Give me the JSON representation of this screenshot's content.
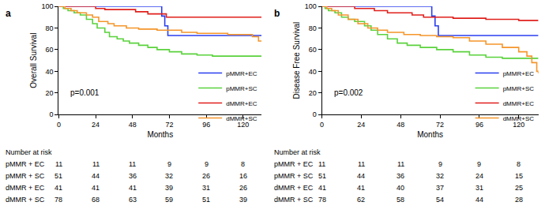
{
  "chart_data": [
    {
      "type": "line",
      "title": "a",
      "line_style": "step",
      "x_label": "Months",
      "y_label": "Overall Survival",
      "xlim": [
        0,
        132
      ],
      "xticks": [
        0,
        24,
        48,
        72,
        96,
        120
      ],
      "ylim": [
        0,
        100
      ],
      "yticks": [
        0,
        20,
        40,
        60,
        80,
        100
      ],
      "grid": false,
      "legend": "right",
      "annotations": [
        "p=0.001"
      ],
      "series": [
        {
          "name": "pMMR+EC",
          "color": "#2b3ff0",
          "x": [
            0,
            67,
            69,
            71,
            132
          ],
          "values": [
            100,
            91,
            82,
            73,
            73
          ]
        },
        {
          "name": "pMMR+SC",
          "color": "#5ad23c",
          "x": [
            0,
            3,
            6,
            10,
            14,
            18,
            22,
            25,
            30,
            33,
            38,
            42,
            46,
            52,
            58,
            64,
            72,
            80,
            90,
            100,
            132
          ],
          "values": [
            100,
            98,
            96,
            94,
            92,
            88,
            84,
            80,
            76,
            72,
            70,
            68,
            66,
            64,
            62,
            60,
            58,
            56,
            55,
            54,
            54
          ]
        },
        {
          "name": "dMMR+EC",
          "color": "#e0201c",
          "x": [
            0,
            24,
            30,
            50,
            58,
            70,
            132
          ],
          "values": [
            100,
            98,
            97,
            95,
            93,
            90,
            90
          ]
        },
        {
          "name": "dMMR+SC",
          "color": "#f5952a",
          "x": [
            0,
            4,
            8,
            12,
            18,
            22,
            26,
            32,
            36,
            44,
            52,
            64,
            80,
            90,
            110,
            126,
            130,
            132
          ],
          "values": [
            100,
            98,
            96,
            94,
            92,
            90,
            86,
            84,
            82,
            80,
            79,
            78,
            76,
            75,
            74,
            72,
            68,
            68
          ]
        }
      ],
      "number_at_risk": {
        "title": "Number at risk",
        "times": [
          0,
          24,
          48,
          72,
          96,
          120
        ],
        "rows": [
          {
            "label": "pMMR + EC",
            "values": [
              11,
              11,
              11,
              9,
              9,
              8
            ]
          },
          {
            "label": "pMMR + SC",
            "values": [
              51,
              44,
              36,
              32,
              26,
              16
            ]
          },
          {
            "label": "dMMR + EC",
            "values": [
              41,
              41,
              41,
              39,
              31,
              26
            ]
          },
          {
            "label": "dMMR + SC",
            "values": [
              78,
              68,
              63,
              59,
              51,
              39
            ]
          }
        ]
      }
    },
    {
      "type": "line",
      "title": "b",
      "line_style": "step",
      "x_label": "Months",
      "y_label": "Disease Free Survival",
      "xlim": [
        0,
        132
      ],
      "xticks": [
        0,
        24,
        48,
        72,
        96,
        120
      ],
      "ylim": [
        0,
        100
      ],
      "yticks": [
        0,
        20,
        40,
        60,
        80,
        100
      ],
      "grid": false,
      "legend": "right",
      "annotations": [
        "p=0.002"
      ],
      "series": [
        {
          "name": "pMMR+EC",
          "color": "#2b3ff0",
          "x": [
            0,
            67,
            69,
            71,
            132
          ],
          "values": [
            100,
            91,
            82,
            73,
            73
          ]
        },
        {
          "name": "pMMR+SC",
          "color": "#5ad23c",
          "x": [
            0,
            2,
            4,
            8,
            12,
            16,
            20,
            26,
            30,
            34,
            40,
            46,
            52,
            60,
            70,
            80,
            90,
            100,
            110,
            132
          ],
          "values": [
            100,
            98,
            96,
            94,
            90,
            88,
            86,
            82,
            78,
            74,
            70,
            66,
            64,
            62,
            60,
            58,
            55,
            53,
            52,
            52
          ]
        },
        {
          "name": "dMMR+EC",
          "color": "#e0201c",
          "x": [
            0,
            20,
            32,
            40,
            55,
            62,
            80,
            100,
            120,
            132
          ],
          "values": [
            100,
            98,
            96,
            94,
            92,
            90,
            89,
            88,
            87,
            87
          ]
        },
        {
          "name": "dMMR+SC",
          "color": "#f5952a",
          "x": [
            0,
            3,
            6,
            10,
            16,
            22,
            28,
            34,
            40,
            50,
            60,
            70,
            80,
            90,
            100,
            110,
            120,
            125,
            128,
            131,
            132
          ],
          "values": [
            100,
            98,
            96,
            92,
            88,
            84,
            80,
            78,
            76,
            74,
            73,
            72,
            71,
            68,
            65,
            62,
            58,
            54,
            48,
            40,
            38
          ]
        }
      ],
      "number_at_risk": {
        "title": "Number at risk",
        "times": [
          0,
          24,
          48,
          72,
          96,
          120
        ],
        "rows": [
          {
            "label": "pMMR + EC",
            "values": [
              11,
              11,
              11,
              9,
              9,
              8
            ]
          },
          {
            "label": "pMMR + SC",
            "values": [
              51,
              44,
              36,
              32,
              24,
              15
            ]
          },
          {
            "label": "dMMR + EC",
            "values": [
              41,
              41,
              40,
              37,
              31,
              25
            ]
          },
          {
            "label": "dMMR + SC",
            "values": [
              78,
              62,
              58,
              54,
              44,
              28
            ]
          }
        ]
      }
    }
  ]
}
